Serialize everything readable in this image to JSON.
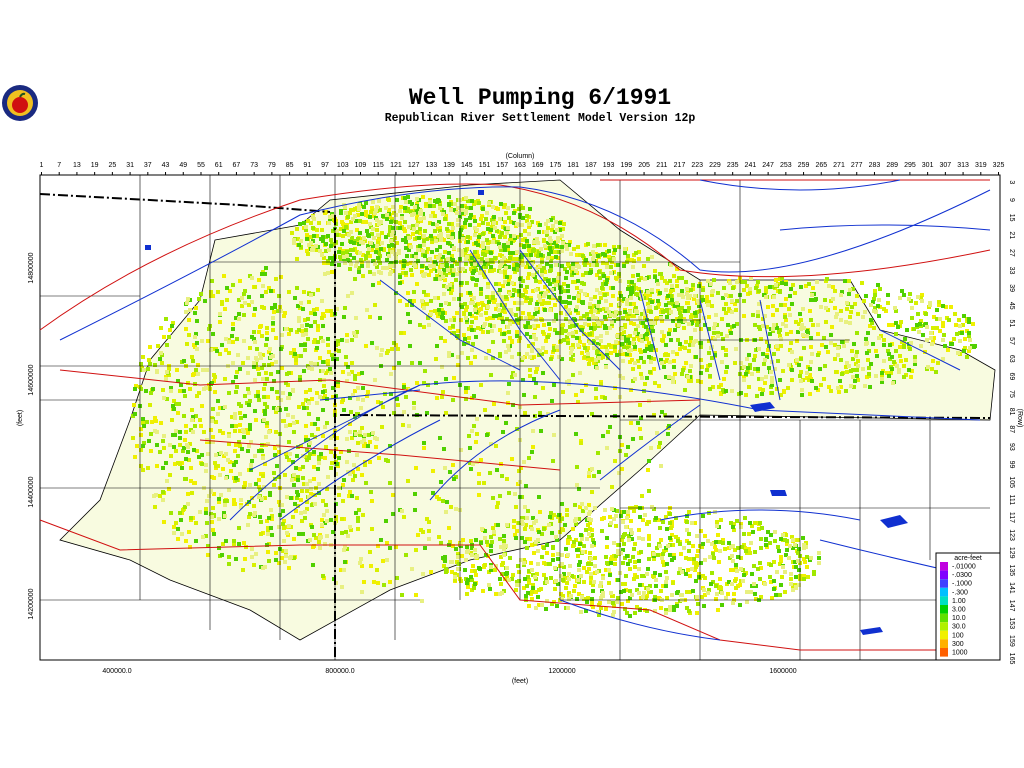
{
  "header": {
    "title": "Well Pumping  6/1991",
    "subtitle": "Republican River Settlement Model Version 12p"
  },
  "axes": {
    "top_label": "(Column)",
    "columns": [
      1,
      7,
      13,
      19,
      25,
      31,
      37,
      43,
      49,
      55,
      61,
      67,
      73,
      79,
      85,
      91,
      97,
      103,
      109,
      115,
      121,
      127,
      133,
      139,
      145,
      151,
      157,
      163,
      169,
      175,
      181,
      187,
      193,
      199,
      205,
      211,
      217,
      223,
      229,
      235,
      241,
      247,
      253,
      259,
      265,
      271,
      277,
      283,
      289,
      295,
      301,
      307,
      313,
      319,
      325
    ],
    "right_label": "(Row)",
    "rows": [
      3,
      9,
      15,
      21,
      27,
      33,
      39,
      45,
      51,
      57,
      63,
      69,
      75,
      81,
      87,
      93,
      99,
      105,
      111,
      117,
      123,
      129,
      135,
      141,
      147,
      153,
      159,
      165
    ],
    "left_label": "(feet)",
    "left_ticks": [
      "14800000",
      "14600000",
      "14400000",
      "14200000"
    ],
    "bottom_label": "(feet)",
    "bottom_ticks": [
      "400000.0",
      "800000.0",
      "1200000",
      "1600000"
    ]
  },
  "legend": {
    "title": "acre-feet",
    "labels": [
      "-.01000",
      "-.0300",
      "-.1000",
      "-.300",
      "1.00",
      "3.00",
      "10.0",
      "30.0",
      "100",
      "300",
      "1000"
    ]
  }
}
